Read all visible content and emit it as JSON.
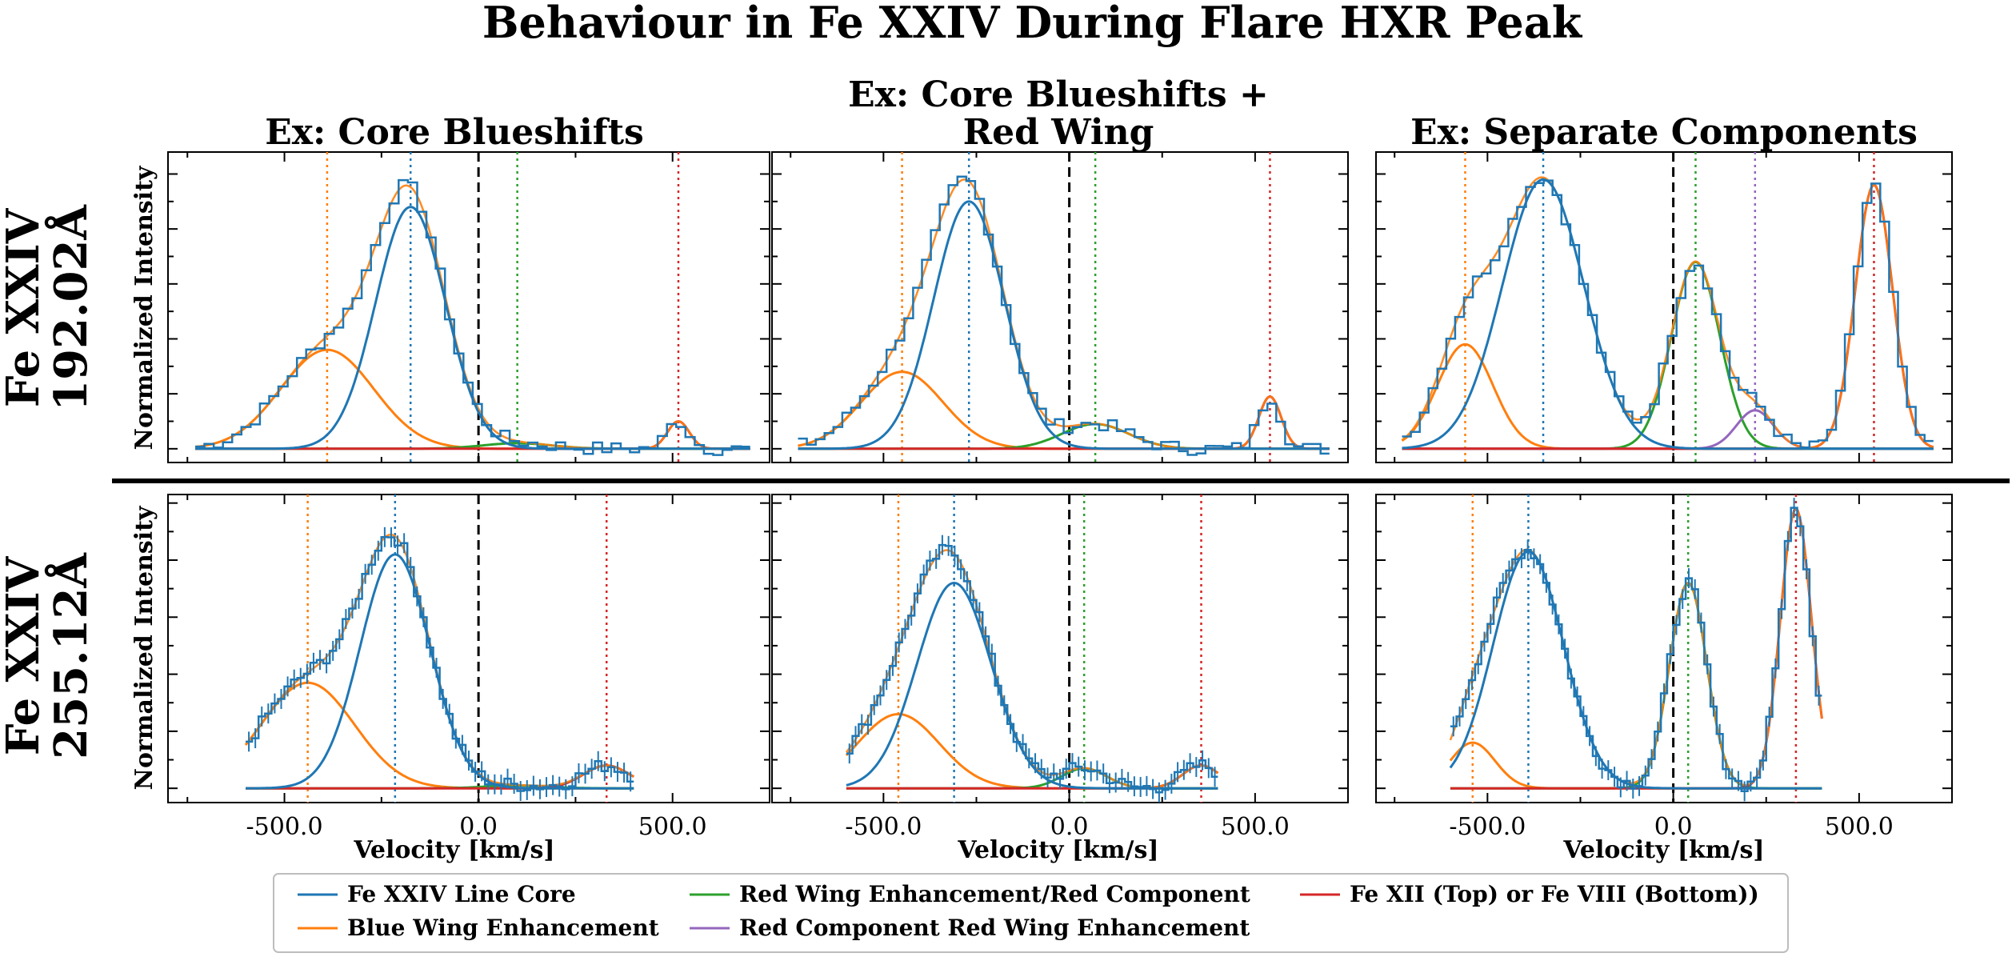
{
  "figure": {
    "title": "Behaviour in Fe XXIV During Flare HXR Peak",
    "column_titles": [
      [
        "Ex: Core Blueshifts"
      ],
      [
        "Ex: Core Blueshifts +",
        "Red Wing"
      ],
      [
        "Ex: Separate Components"
      ]
    ],
    "row_labels": [
      [
        "Fe XXIV",
        "192.02Å"
      ],
      [
        "Fe XXIV",
        "255.12Å"
      ]
    ],
    "ylabel": "Normalized Intensity",
    "xlabel": "Velocity [km/s]"
  },
  "colors": {
    "core": "#1f77b4",
    "blue_wing": "#ff7f0e",
    "red_wing": "#2ca02c",
    "red_comp_wing": "#9467bd",
    "blend": "#d62728",
    "zero": "#000000"
  },
  "legend": [
    {
      "key": "core",
      "label": "Fe XXIV Line Core"
    },
    {
      "key": "blue_wing",
      "label": "Blue Wing Enhancement"
    },
    {
      "key": "red_wing",
      "label": "Red Wing Enhancement/Red Component"
    },
    {
      "key": "red_comp_wing",
      "label": "Red Component Red Wing Enhancement"
    },
    {
      "key": "blend",
      "label": "Fe XII (Top) or Fe VIII (Bottom))"
    }
  ],
  "chart_data": [
    {
      "id": "r0c0",
      "type": "line",
      "xlim": [
        -800,
        750
      ],
      "ylim": [
        -0.05,
        1.08
      ],
      "xticks": [
        -500,
        0,
        500
      ],
      "xtick_labels": [],
      "data_range": [
        -730,
        700
      ],
      "errorbars": false,
      "series": [
        {
          "key": "core",
          "name": "Fe XXIV Line Core",
          "gaussian": {
            "amp": 0.88,
            "center": -175,
            "sigma": 90
          }
        },
        {
          "key": "blue_wing",
          "name": "Blue Wing Enhancement",
          "gaussian": {
            "amp": 0.36,
            "center": -390,
            "sigma": 120
          }
        },
        {
          "key": "red_wing",
          "name": "Red Wing Enhancement/Red Component",
          "gaussian": {
            "amp": 0.02,
            "center": 100,
            "sigma": 90
          }
        },
        {
          "key": "blend",
          "name": "Fe XII (Top) or Fe VIII (Bottom))",
          "gaussian": {
            "amp": 0.1,
            "center": 515,
            "sigma": 28
          }
        }
      ],
      "vlines": [
        {
          "key": "blue_wing",
          "x": -390
        },
        {
          "key": "core",
          "x": -175
        },
        {
          "key": "zero",
          "x": 0
        },
        {
          "key": "red_wing",
          "x": 100
        },
        {
          "key": "blend",
          "x": 515
        }
      ]
    },
    {
      "id": "r0c1",
      "type": "line",
      "xlim": [
        -800,
        750
      ],
      "ylim": [
        -0.05,
        1.08
      ],
      "xticks": [
        -500,
        0,
        500
      ],
      "xtick_labels": [],
      "data_range": [
        -730,
        700
      ],
      "errorbars": false,
      "series": [
        {
          "key": "core",
          "name": "Fe XXIV Line Core",
          "gaussian": {
            "amp": 0.9,
            "center": -270,
            "sigma": 95
          }
        },
        {
          "key": "blue_wing",
          "name": "Blue Wing Enhancement",
          "gaussian": {
            "amp": 0.28,
            "center": -450,
            "sigma": 110
          }
        },
        {
          "key": "red_wing",
          "name": "Red Wing Enhancement/Red Component",
          "gaussian": {
            "amp": 0.09,
            "center": 70,
            "sigma": 90
          }
        },
        {
          "key": "blend",
          "name": "Fe XII (Top) or Fe VIII (Bottom))",
          "gaussian": {
            "amp": 0.19,
            "center": 540,
            "sigma": 30
          }
        }
      ],
      "vlines": [
        {
          "key": "blue_wing",
          "x": -450
        },
        {
          "key": "core",
          "x": -270
        },
        {
          "key": "zero",
          "x": 0
        },
        {
          "key": "red_wing",
          "x": 70
        },
        {
          "key": "blend",
          "x": 540
        }
      ]
    },
    {
      "id": "r0c2",
      "type": "line",
      "xlim": [
        -800,
        750
      ],
      "ylim": [
        -0.05,
        1.08
      ],
      "xticks": [
        -500,
        0,
        500
      ],
      "xtick_labels": [],
      "data_range": [
        -730,
        700
      ],
      "errorbars": false,
      "series": [
        {
          "key": "core",
          "name": "Fe XXIV Line Core",
          "gaussian": {
            "amp": 0.98,
            "center": -350,
            "sigma": 110
          }
        },
        {
          "key": "blue_wing",
          "name": "Blue Wing Enhancement",
          "gaussian": {
            "amp": 0.38,
            "center": -560,
            "sigma": 75
          }
        },
        {
          "key": "red_wing",
          "name": "Red Wing Enhancement/Red Component",
          "gaussian": {
            "amp": 0.68,
            "center": 60,
            "sigma": 65
          }
        },
        {
          "key": "red_comp_wing",
          "name": "Red Component Red Wing Enhancement",
          "gaussian": {
            "amp": 0.14,
            "center": 220,
            "sigma": 50
          }
        },
        {
          "key": "blend",
          "name": "Fe XII (Top) or Fe VIII (Bottom))",
          "gaussian": {
            "amp": 0.96,
            "center": 540,
            "sigma": 50
          }
        }
      ],
      "vlines": [
        {
          "key": "blue_wing",
          "x": -560
        },
        {
          "key": "core",
          "x": -350
        },
        {
          "key": "zero",
          "x": 0
        },
        {
          "key": "red_wing",
          "x": 60
        },
        {
          "key": "red_comp_wing",
          "x": 220
        },
        {
          "key": "blend",
          "x": 540
        }
      ]
    },
    {
      "id": "r1c0",
      "type": "line",
      "xlim": [
        -800,
        750
      ],
      "ylim": [
        -0.05,
        1.03
      ],
      "xticks": [
        -500,
        0,
        500
      ],
      "xtick_labels": [
        "-500.0",
        "0.0",
        "500.0"
      ],
      "data_range": [
        -600,
        400
      ],
      "errorbars": true,
      "series": [
        {
          "key": "core",
          "name": "Fe XXIV Line Core",
          "gaussian": {
            "amp": 0.82,
            "center": -215,
            "sigma": 90
          }
        },
        {
          "key": "blue_wing",
          "name": "Blue Wing Enhancement",
          "gaussian": {
            "amp": 0.37,
            "center": -440,
            "sigma": 120
          }
        },
        {
          "key": "red_wing",
          "name": "Red Wing Enhancement/Red Component",
          "gaussian": {
            "amp": 0.01,
            "center": 100,
            "sigma": 80
          }
        },
        {
          "key": "blend",
          "name": "Fe XII (Top) or Fe VIII (Bottom))",
          "gaussian": {
            "amp": 0.08,
            "center": 330,
            "sigma": 60
          }
        }
      ],
      "vlines": [
        {
          "key": "blue_wing",
          "x": -440
        },
        {
          "key": "core",
          "x": -215
        },
        {
          "key": "zero",
          "x": 0
        },
        {
          "key": "blend",
          "x": 330
        }
      ]
    },
    {
      "id": "r1c1",
      "type": "line",
      "xlim": [
        -800,
        750
      ],
      "ylim": [
        -0.05,
        1.03
      ],
      "xticks": [
        -500,
        0,
        500
      ],
      "xtick_labels": [
        "-500.0",
        "0.0",
        "500.0"
      ],
      "data_range": [
        -600,
        400
      ],
      "errorbars": true,
      "series": [
        {
          "key": "core",
          "name": "Fe XXIV Line Core",
          "gaussian": {
            "amp": 0.72,
            "center": -310,
            "sigma": 100
          }
        },
        {
          "key": "blue_wing",
          "name": "Blue Wing Enhancement",
          "gaussian": {
            "amp": 0.26,
            "center": -460,
            "sigma": 110
          }
        },
        {
          "key": "red_wing",
          "name": "Red Wing Enhancement/Red Component",
          "gaussian": {
            "amp": 0.07,
            "center": 40,
            "sigma": 60
          }
        },
        {
          "key": "blend",
          "name": "Fe XII (Top) or Fe VIII (Bottom))",
          "gaussian": {
            "amp": 0.08,
            "center": 355,
            "sigma": 50
          }
        }
      ],
      "vlines": [
        {
          "key": "blue_wing",
          "x": -460
        },
        {
          "key": "core",
          "x": -310
        },
        {
          "key": "zero",
          "x": 0
        },
        {
          "key": "red_wing",
          "x": 40
        },
        {
          "key": "blend",
          "x": 355
        }
      ]
    },
    {
      "id": "r1c2",
      "type": "line",
      "xlim": [
        -800,
        750
      ],
      "ylim": [
        -0.05,
        1.03
      ],
      "xticks": [
        -500,
        0,
        500
      ],
      "xtick_labels": [
        "-500.0",
        "0.0",
        "500.0"
      ],
      "data_range": [
        -600,
        400
      ],
      "errorbars": true,
      "series": [
        {
          "key": "core",
          "name": "Fe XXIV Line Core",
          "gaussian": {
            "amp": 0.83,
            "center": -390,
            "sigma": 95
          }
        },
        {
          "key": "blue_wing",
          "name": "Blue Wing Enhancement",
          "gaussian": {
            "amp": 0.16,
            "center": -540,
            "sigma": 60
          }
        },
        {
          "key": "red_wing",
          "name": "Red Wing Enhancement/Red Component",
          "gaussian": {
            "amp": 0.72,
            "center": 40,
            "sigma": 50
          }
        },
        {
          "key": "blend",
          "name": "Fe XII (Top) or Fe VIII (Bottom))",
          "gaussian": {
            "amp": 0.98,
            "center": 330,
            "sigma": 42
          }
        }
      ],
      "vlines": [
        {
          "key": "blue_wing",
          "x": -540
        },
        {
          "key": "core",
          "x": -390
        },
        {
          "key": "zero",
          "x": 0
        },
        {
          "key": "red_wing",
          "x": 40
        },
        {
          "key": "blend",
          "x": 330
        }
      ]
    }
  ]
}
